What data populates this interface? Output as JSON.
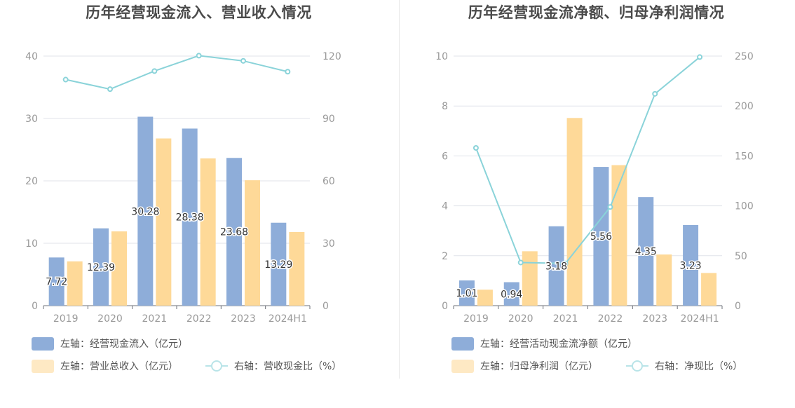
{
  "colors": {
    "bar1": "#8eadd9",
    "bar2": "#fed998",
    "line": "#8ad3d9",
    "grid": "#e0e3ea",
    "axis": "#999999",
    "label": "#333333"
  },
  "chart_data": [
    {
      "type": "bar",
      "title": "历年经营现金流入、营业收入情况",
      "categories": [
        "2019",
        "2020",
        "2021",
        "2022",
        "2023",
        "2024H1"
      ],
      "left_axis": {
        "ylim": [
          0,
          40
        ],
        "ticks": [
          "0",
          "10",
          "20",
          "30",
          "40"
        ]
      },
      "right_axis": {
        "ylim": [
          0,
          120
        ],
        "ticks": [
          "0",
          "30",
          "60",
          "90",
          "120"
        ]
      },
      "series": [
        {
          "name": "左轴：经营现金流入（亿元）",
          "kind": "bar",
          "axis": "left",
          "values": [
            7.72,
            12.39,
            30.28,
            28.38,
            23.68,
            13.29
          ],
          "labels": [
            "7.72",
            "12.39",
            "30.28",
            "28.38",
            "23.68",
            "13.29"
          ]
        },
        {
          "name": "左轴：营业总收入（亿元）",
          "kind": "bar",
          "axis": "left",
          "values": [
            7.1,
            11.9,
            26.8,
            23.6,
            20.1,
            11.8
          ]
        },
        {
          "name": "右轴：营收现金比（%）",
          "kind": "line",
          "axis": "right",
          "values": [
            108.7,
            104.1,
            112.8,
            120.2,
            117.7,
            112.5
          ]
        }
      ]
    },
    {
      "type": "bar",
      "title": "历年经营现金流净额、归母净利润情况",
      "categories": [
        "2019",
        "2020",
        "2021",
        "2022",
        "2023",
        "2024H1"
      ],
      "left_axis": {
        "ylim": [
          0,
          10
        ],
        "ticks": [
          "0",
          "2",
          "4",
          "6",
          "8",
          "10"
        ]
      },
      "right_axis": {
        "ylim": [
          0,
          250
        ],
        "ticks": [
          "0",
          "50",
          "100",
          "150",
          "200",
          "250"
        ]
      },
      "series": [
        {
          "name": "左轴：经营活动现金流净额（亿元）",
          "kind": "bar",
          "axis": "left",
          "values": [
            1.01,
            0.94,
            3.18,
            5.56,
            4.35,
            3.23
          ],
          "labels": [
            "1.01",
            "0.94",
            "3.18",
            "5.56",
            "4.35",
            "3.23"
          ]
        },
        {
          "name": "左轴：归母净利润（亿元）",
          "kind": "bar",
          "axis": "left",
          "values": [
            0.64,
            2.18,
            7.52,
            5.63,
            2.05,
            1.31
          ]
        },
        {
          "name": "右轴：净现比（%）",
          "kind": "line",
          "axis": "right",
          "values": [
            158.0,
            43.2,
            42.3,
            98.8,
            212.2,
            249.0
          ]
        }
      ]
    }
  ]
}
